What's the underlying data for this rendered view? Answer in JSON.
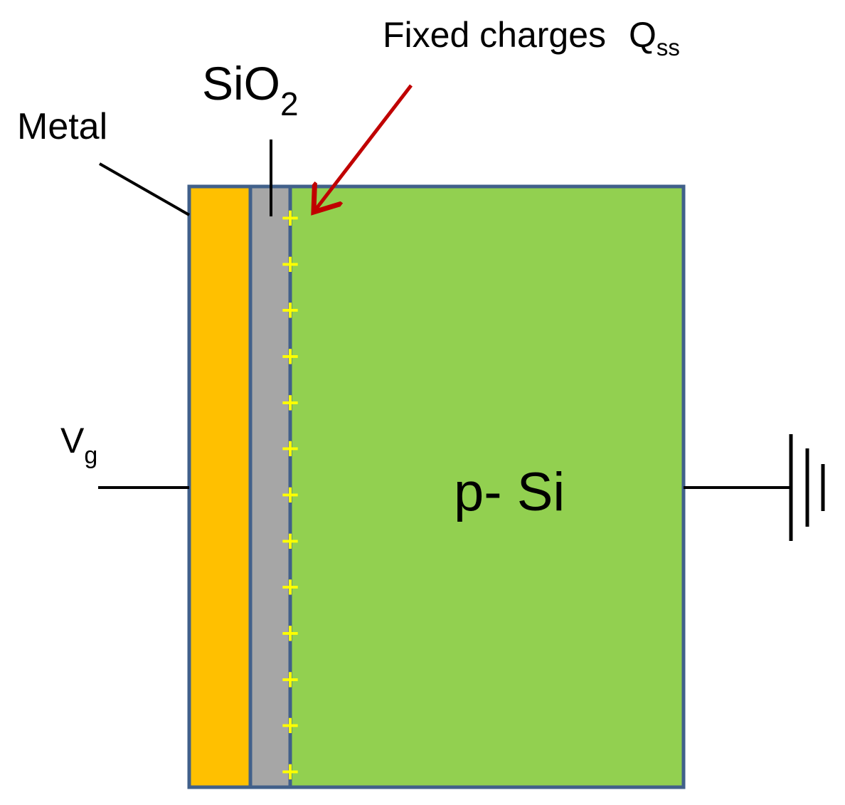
{
  "labels": {
    "fixed_charges": "Fixed charges",
    "q_main": "Q",
    "q_sub": "ss",
    "oxide_main": "SiO",
    "oxide_sub": "2",
    "metal": "Metal",
    "gate_voltage_main": "V",
    "gate_voltage_sub": "g",
    "substrate": "p- Si"
  },
  "charge_symbol": "+",
  "charge_count": 13,
  "colors": {
    "metal": "#ffc000",
    "oxide": "#a6a6a6",
    "silicon": "#92d050",
    "border": "#41608a",
    "charges": "#ffff00",
    "arrow": "#c00000",
    "wires": "#000000"
  }
}
